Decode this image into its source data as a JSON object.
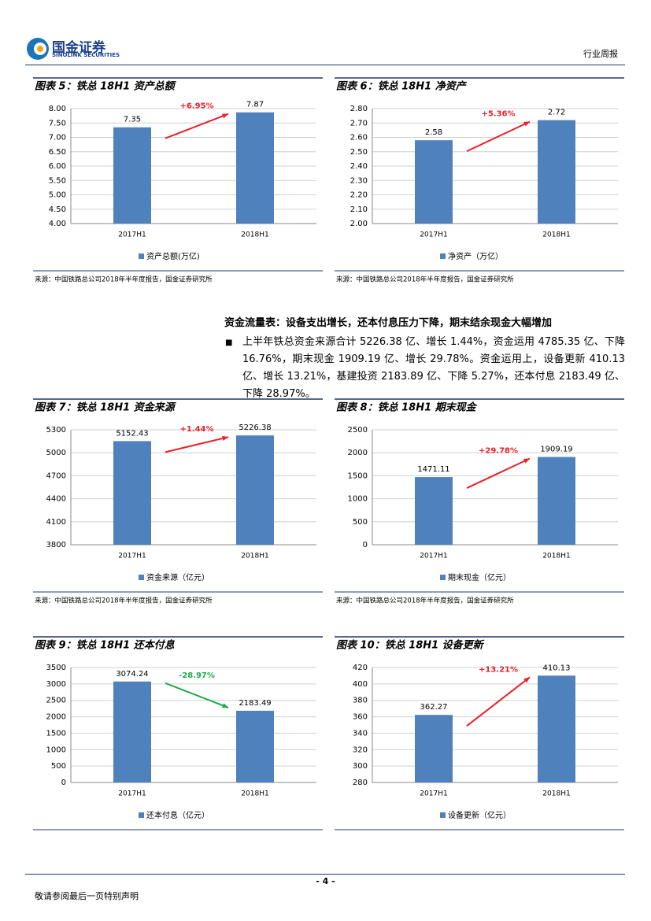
{
  "header": {
    "logo": "国金证券",
    "logo_en": "SINOLINK SECURITIES",
    "report_type": "行业周报"
  },
  "section": {
    "heading": "资金流量表：设备支出增长，还本付息压力下降，期末结余现金大幅增加",
    "bullet": "上半年铁总资金来源合计 5226.38 亿、增长 1.44%，资金运用 4785.35 亿、下降 16.76%，期末现金 1909.19 亿、增长 29.78%。资金运用上，设备更新 410.13 亿、增长 13.21%，基建投资 2183.89 亿、下降 5.27%，还本付息 2183.49 亿、下降 28.97%。"
  },
  "chart_data": [
    {
      "type": "bar",
      "title": "图表 5：铁总 18H1 资产总额",
      "categories": [
        "2017H1",
        "2018H1"
      ],
      "series": [
        {
          "name": "资产总额(万亿)",
          "color": "#4f81bd",
          "values": [
            7.35,
            7.87
          ]
        }
      ],
      "ylim": [
        4,
        8
      ],
      "yticks": [
        {
          "value": 4,
          "label": "4.00"
        },
        {
          "value": 4.5,
          "label": "4.50"
        },
        {
          "value": 5,
          "label": "5.00"
        },
        {
          "value": 5.5,
          "label": "5.50"
        },
        {
          "value": 6,
          "label": "6.00"
        },
        {
          "value": 6.5,
          "label": "6.50"
        },
        {
          "value": 7,
          "label": "7.00"
        },
        {
          "value": 7.5,
          "label": "7.50"
        },
        {
          "value": 8,
          "label": "8.00"
        }
      ],
      "grid": true,
      "annotation": "+6.95%",
      "annotation_color": "#e8202a",
      "source": "来源：中国铁路总公司2018年半年度报告，国金证券研究所"
    },
    {
      "type": "bar",
      "title": "图表 6：铁总 18H1 净资产",
      "categories": [
        "2017H1",
        "2018H1"
      ],
      "series": [
        {
          "name": "净资产（万亿）",
          "color": "#4f81bd",
          "values": [
            2.58,
            2.72
          ]
        }
      ],
      "ylim": [
        2,
        2.8
      ],
      "yticks": [
        {
          "value": 2,
          "label": "2.00"
        },
        {
          "value": 2.1,
          "label": "2.10"
        },
        {
          "value": 2.2,
          "label": "2.20"
        },
        {
          "value": 2.3,
          "label": "2.30"
        },
        {
          "value": 2.4,
          "label": "2.40"
        },
        {
          "value": 2.5,
          "label": "2.50"
        },
        {
          "value": 2.6,
          "label": "2.60"
        },
        {
          "value": 2.7,
          "label": "2.70"
        },
        {
          "value": 2.8,
          "label": "2.80"
        }
      ],
      "grid": true,
      "annotation": "+5.36%",
      "annotation_color": "#e8202a",
      "source": "来源：中国铁路总公司2018年半年度报告，国金证券研究所"
    },
    {
      "type": "bar",
      "title": "图表 7：铁总 18H1 资金来源",
      "categories": [
        "2017H1",
        "2018H1"
      ],
      "series": [
        {
          "name": "资金来源（亿元）",
          "color": "#4f81bd",
          "values": [
            5152.43,
            5226.38
          ]
        }
      ],
      "ylim": [
        3800,
        5300
      ],
      "yticks": [
        3800,
        4100,
        4400,
        4700,
        5000,
        5300
      ],
      "grid": true,
      "annotation": "+1.44%",
      "annotation_color": "#e8202a",
      "source": "来源：中国铁路总公司2018年半年度报告，国金证券研究所"
    },
    {
      "type": "bar",
      "title": "图表 8：铁总 18H1 期末现金",
      "categories": [
        "2017H1",
        "2018H1"
      ],
      "series": [
        {
          "name": "期末现金（亿元）",
          "color": "#4f81bd",
          "values": [
            1471.11,
            1909.19
          ]
        }
      ],
      "ylim": [
        0,
        2500
      ],
      "yticks": [
        0,
        500,
        1000,
        1500,
        2000,
        2500
      ],
      "grid": true,
      "annotation": "+29.78%",
      "annotation_color": "#e8202a",
      "source": "来源：中国铁路总公司2018年半年度报告，国金证券研究所"
    },
    {
      "type": "bar",
      "title": "图表 9：铁总 18H1 还本付息",
      "categories": [
        "2017H1",
        "2018H1"
      ],
      "series": [
        {
          "name": "还本付息（亿元）",
          "color": "#4f81bd",
          "values": [
            3074.24,
            2183.49
          ]
        }
      ],
      "ylim": [
        0,
        3500
      ],
      "yticks": [
        0,
        500,
        1000,
        1500,
        2000,
        2500,
        3000,
        3500
      ],
      "grid": true,
      "annotation": "-28.97%",
      "annotation_color": "#1fa84a"
    },
    {
      "type": "bar",
      "title": "图表 10：铁总 18H1 设备更新",
      "categories": [
        "2017H1",
        "2018H1"
      ],
      "series": [
        {
          "name": "设备更新（亿元）",
          "color": "#4f81bd",
          "values": [
            362.27,
            410.13
          ]
        }
      ],
      "ylim": [
        280,
        420
      ],
      "yticks": [
        280,
        300,
        320,
        340,
        360,
        380,
        400,
        420
      ],
      "grid": true,
      "annotation": "+13.21%",
      "annotation_color": "#e8202a"
    }
  ],
  "footer": {
    "page": "- 4 -",
    "disclaimer": "敬请参阅最后一页特别声明"
  }
}
